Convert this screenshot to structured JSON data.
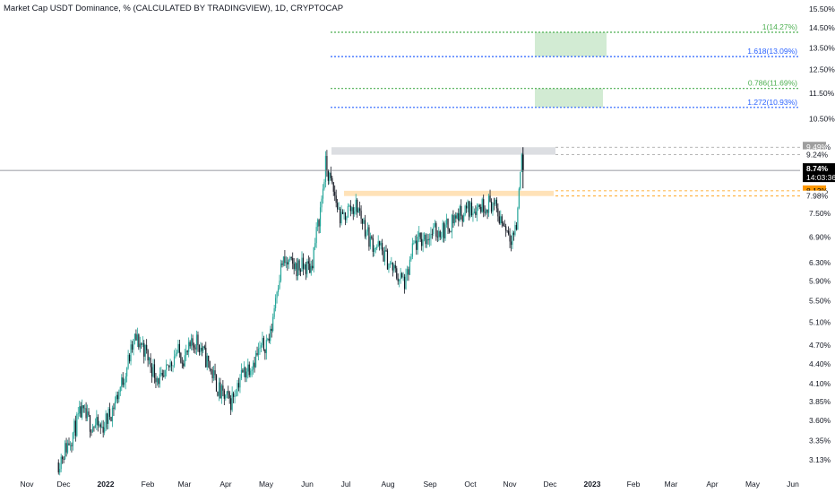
{
  "title": "Market Cap USDT Dominance, % (CALCULATED BY TRADINGVIEW), 1D, CRYPTOCAP",
  "colors": {
    "up": "#26a69a",
    "down": "#131722",
    "fib_green": "#4caf50",
    "fib_blue": "#2962ff",
    "orange": "#ff9800",
    "gray_tag": "#9e9e9e",
    "price_tag": "#000000"
  },
  "chart_data": {
    "type": "candlestick",
    "timeframe": "1D",
    "symbol": "CRYPTOCAP",
    "y_scale": "log",
    "ylim": [
      3.05,
      15.7
    ],
    "y_ticks": [
      "15.50%",
      "14.50%",
      "13.50%",
      "12.50%",
      "11.50%",
      "10.50%",
      "9.50%",
      "7.50%",
      "6.90%",
      "6.30%",
      "5.90%",
      "5.50%",
      "5.10%",
      "4.70%",
      "4.40%",
      "4.10%",
      "3.85%",
      "3.60%",
      "3.35%",
      "3.13%"
    ],
    "x_ticks": [
      {
        "label": "Nov",
        "bold": false
      },
      {
        "label": "Dec",
        "bold": false
      },
      {
        "label": "2022",
        "bold": true
      },
      {
        "label": "Feb",
        "bold": false
      },
      {
        "label": "Mar",
        "bold": false
      },
      {
        "label": "Apr",
        "bold": false
      },
      {
        "label": "May",
        "bold": false
      },
      {
        "label": "Jun",
        "bold": false
      },
      {
        "label": "Jul",
        "bold": false
      },
      {
        "label": "Aug",
        "bold": false
      },
      {
        "label": "Sep",
        "bold": false
      },
      {
        "label": "Oct",
        "bold": false
      },
      {
        "label": "Nov",
        "bold": false
      },
      {
        "label": "Dec",
        "bold": false
      },
      {
        "label": "2023",
        "bold": true
      },
      {
        "label": "Feb",
        "bold": false
      },
      {
        "label": "Mar",
        "bold": false
      },
      {
        "label": "Apr",
        "bold": false
      },
      {
        "label": "May",
        "bold": false
      },
      {
        "label": "Jun",
        "bold": false
      }
    ],
    "series_close": [
      {
        "date": "2021-11-25",
        "value": 3.1
      },
      {
        "date": "2021-12-05",
        "value": 3.4
      },
      {
        "date": "2021-12-12",
        "value": 3.7
      },
      {
        "date": "2021-12-20",
        "value": 3.55
      },
      {
        "date": "2021-12-28",
        "value": 3.5
      },
      {
        "date": "2022-01-05",
        "value": 3.75
      },
      {
        "date": "2022-01-12",
        "value": 4.1
      },
      {
        "date": "2022-01-22",
        "value": 4.8
      },
      {
        "date": "2022-01-28",
        "value": 4.7
      },
      {
        "date": "2022-02-05",
        "value": 4.3
      },
      {
        "date": "2022-02-12",
        "value": 4.1
      },
      {
        "date": "2022-02-22",
        "value": 4.6
      },
      {
        "date": "2022-03-01",
        "value": 4.5
      },
      {
        "date": "2022-03-10",
        "value": 4.8
      },
      {
        "date": "2022-03-20",
        "value": 4.35
      },
      {
        "date": "2022-03-28",
        "value": 3.95
      },
      {
        "date": "2022-04-05",
        "value": 3.85
      },
      {
        "date": "2022-04-12",
        "value": 4.2
      },
      {
        "date": "2022-04-22",
        "value": 4.45
      },
      {
        "date": "2022-04-30",
        "value": 4.7
      },
      {
        "date": "2022-05-05",
        "value": 4.85
      },
      {
        "date": "2022-05-10",
        "value": 5.8
      },
      {
        "date": "2022-05-14",
        "value": 6.3
      },
      {
        "date": "2022-05-25",
        "value": 6.2
      },
      {
        "date": "2022-06-05",
        "value": 6.2
      },
      {
        "date": "2022-06-12",
        "value": 7.6
      },
      {
        "date": "2022-06-16",
        "value": 8.9
      },
      {
        "date": "2022-06-22",
        "value": 8.1
      },
      {
        "date": "2022-06-28",
        "value": 7.3
      },
      {
        "date": "2022-07-03",
        "value": 7.6
      },
      {
        "date": "2022-07-10",
        "value": 7.7
      },
      {
        "date": "2022-07-20",
        "value": 6.8
      },
      {
        "date": "2022-07-28",
        "value": 6.6
      },
      {
        "date": "2022-08-05",
        "value": 6.2
      },
      {
        "date": "2022-08-10",
        "value": 6.0
      },
      {
        "date": "2022-08-16",
        "value": 5.85
      },
      {
        "date": "2022-08-22",
        "value": 6.7
      },
      {
        "date": "2022-08-31",
        "value": 6.9
      },
      {
        "date": "2022-09-05",
        "value": 7.0
      },
      {
        "date": "2022-09-15",
        "value": 7.1
      },
      {
        "date": "2022-09-22",
        "value": 7.4
      },
      {
        "date": "2022-10-01",
        "value": 7.6
      },
      {
        "date": "2022-10-10",
        "value": 7.7
      },
      {
        "date": "2022-10-20",
        "value": 7.8
      },
      {
        "date": "2022-10-28",
        "value": 7.3
      },
      {
        "date": "2022-11-04",
        "value": 6.95
      },
      {
        "date": "2022-11-08",
        "value": 7.1
      },
      {
        "date": "2022-11-10",
        "value": 8.2
      },
      {
        "date": "2022-11-12",
        "value": 9.24
      },
      {
        "date": "2022-11-13",
        "value": 8.74
      }
    ],
    "fib_levels": [
      {
        "label": "1(14.27%)",
        "value": 14.27,
        "color": "green"
      },
      {
        "label": "1.618(13.09%)",
        "value": 13.09,
        "color": "blue"
      },
      {
        "label": "0.786(11.69%)",
        "value": 11.69,
        "color": "green"
      },
      {
        "label": "1.272(10.93%)",
        "value": 10.93,
        "color": "blue"
      }
    ],
    "target_zones": [
      {
        "from": 13.09,
        "to": 14.27
      },
      {
        "from": 10.93,
        "to": 11.69
      }
    ],
    "resistance_zone": {
      "from": 9.24,
      "to": 9.49
    },
    "support_zone": {
      "from": 7.98,
      "to": 8.13
    },
    "last_price": {
      "value": "8.74%",
      "countdown": "14:03:36"
    },
    "price_tags": [
      {
        "text": "9.49%",
        "value": 9.49,
        "style": "gray"
      },
      {
        "text": "9.24%",
        "value": 9.24,
        "style": "plain"
      },
      {
        "text": "8.13%",
        "value": 8.13,
        "style": "orange"
      },
      {
        "text": "7.98%",
        "value": 7.98,
        "style": "plain-orange"
      }
    ]
  }
}
